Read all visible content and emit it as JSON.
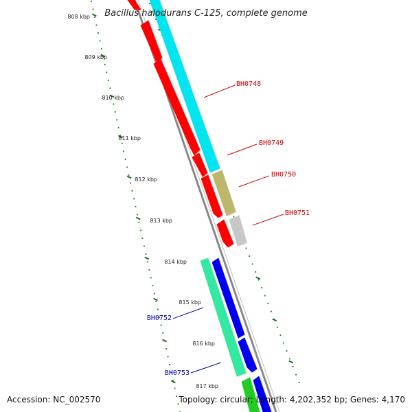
{
  "title": "Bacillus halodurans C-125, complete genome",
  "accession": "Accession: NC_002570",
  "summary": "Topology: circular; Length: 4,202,352 bp; Genes: 4,170",
  "colors": {
    "backbone": "#888888",
    "tick_minor": "#2a8a2a",
    "tick_major": "#1a6a1a",
    "label_top_strand": "#cc0000",
    "label_bottom_strand": "#0000aa"
  },
  "ticks": [
    {
      "label": "808 kbp"
    },
    {
      "label": "809 kbp"
    },
    {
      "label": "810 kbp"
    },
    {
      "label": "811 kbp"
    },
    {
      "label": "812 kbp"
    },
    {
      "label": "813 kbp"
    },
    {
      "label": "814 kbp"
    },
    {
      "label": "815 kbp"
    },
    {
      "label": "816 kbp"
    },
    {
      "label": "817 kbp"
    }
  ],
  "gene_labels": [
    {
      "text": "BH0748",
      "strand": "top"
    },
    {
      "text": "BH0749",
      "strand": "top"
    },
    {
      "text": "BH0750",
      "strand": "top"
    },
    {
      "text": "BH0751",
      "strand": "top"
    },
    {
      "text": "BH0752",
      "strand": "bottom"
    },
    {
      "text": "BH0753",
      "strand": "bottom"
    }
  ],
  "features": [
    {
      "name": "cds-red-1",
      "color": "#ff0000"
    },
    {
      "name": "cds-red-2",
      "color": "#ff0000"
    },
    {
      "name": "cds-red-3",
      "color": "#ff0000"
    },
    {
      "name": "cds-red-4",
      "color": "#ff0000"
    },
    {
      "name": "cds-red-5",
      "color": "#ff0000"
    },
    {
      "name": "gene-cyan",
      "color": "#00e5f0"
    },
    {
      "name": "gene-olive",
      "color": "#bdb76b"
    },
    {
      "name": "gene-grey",
      "color": "#c8c8c8"
    },
    {
      "name": "gene-green",
      "color": "#33e8a0"
    },
    {
      "name": "cds-blue-1",
      "color": "#0000ee"
    },
    {
      "name": "cds-blue-2",
      "color": "#0000ee"
    },
    {
      "name": "gene-green-2",
      "color": "#22cc22"
    },
    {
      "name": "cds-blue-3",
      "color": "#0000ee"
    }
  ]
}
